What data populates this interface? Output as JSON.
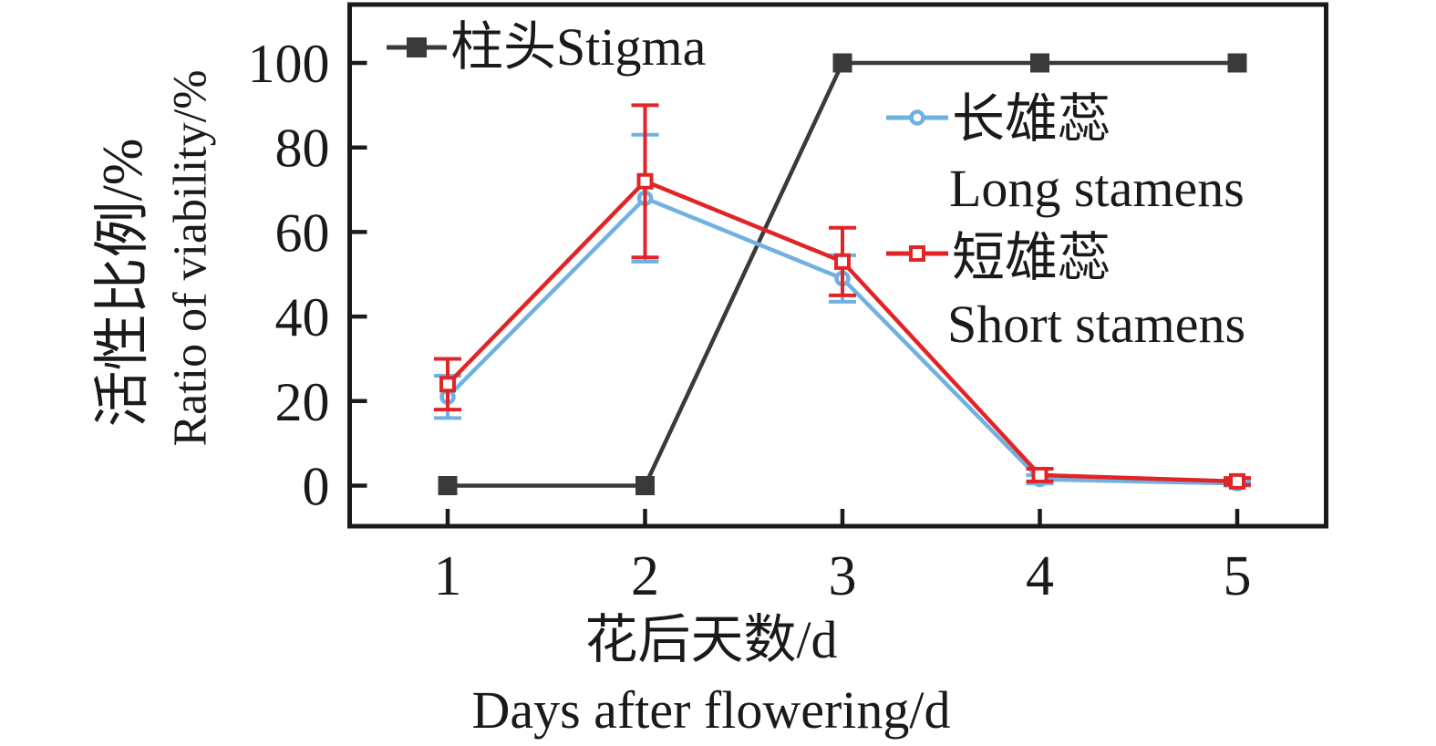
{
  "chart_data": {
    "type": "line",
    "x": [
      1,
      2,
      3,
      4,
      5
    ],
    "xticks": [
      1,
      2,
      3,
      4,
      5
    ],
    "yticks": [
      0,
      20,
      40,
      60,
      80,
      100
    ],
    "xlim": [
      0.5,
      5.45
    ],
    "ylim": [
      -10,
      114
    ],
    "grid": false,
    "xlabel_zh": "花后天数/d",
    "xlabel_en": "Days after flowering/d",
    "ylabel_zh": "活性比例/%",
    "ylabel_en": "Ratio of viability/%",
    "legend_position": "inside plot: stigma top-left, stamens right",
    "axis_color": "#1a1a1a",
    "background_color": "#ffffff",
    "series": [
      {
        "key": "stigma",
        "label": "柱头Stigma",
        "name_zh": "柱头",
        "name_en": "Stigma",
        "color": "#3a3a3c",
        "marker": "filled-square",
        "values": [
          0,
          0,
          100,
          100,
          100
        ]
      },
      {
        "key": "long-stamens",
        "name_zh": "长雄蕊",
        "name_en": "Long stamens",
        "color": "#6fb1e1",
        "marker": "open-circle",
        "values": [
          21,
          68,
          49,
          1.5,
          0.5
        ],
        "error_plus": [
          5,
          15,
          5.5,
          1,
          0.5
        ],
        "error_minus": [
          5,
          15,
          5.5,
          1,
          0.5
        ]
      },
      {
        "key": "short-stamens",
        "name_zh": "短雄蕊",
        "name_en": "Short stamens",
        "color": "#e12428",
        "marker": "open-square",
        "values": [
          24,
          72,
          53,
          2.5,
          1
        ],
        "error_plus": [
          6,
          18,
          8,
          1.5,
          0.8
        ],
        "error_minus": [
          6,
          18,
          8,
          1.5,
          0.8
        ]
      }
    ]
  }
}
